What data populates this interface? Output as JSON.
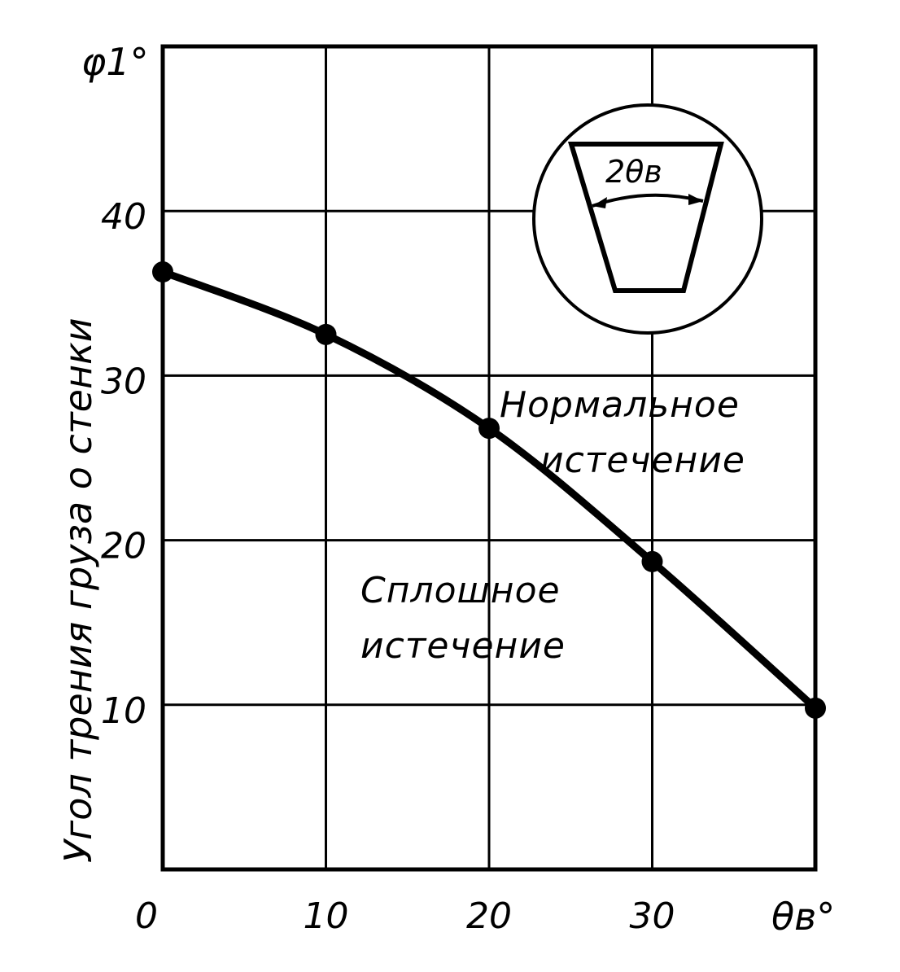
{
  "chart_data": {
    "type": "line",
    "title": "",
    "xlabel": "θв°",
    "ylabel": "Угол трения груза о стенки",
    "ylabel_symbol": "φ1°",
    "xlim": [
      0,
      40
    ],
    "ylim": [
      0,
      50
    ],
    "x_ticks": [
      "0",
      "10",
      "20",
      "30"
    ],
    "y_ticks": [
      "10",
      "20",
      "30",
      "40"
    ],
    "grid": true,
    "series": [
      {
        "x": [
          0,
          10,
          20,
          30,
          40
        ],
        "y": [
          36.3,
          32.5,
          26.8,
          18.7,
          9.8
        ]
      }
    ],
    "annotations": {
      "upper_region": [
        "Нормальное",
        "истечение"
      ],
      "lower_region": [
        "Сплошное",
        "истечение"
      ],
      "inset_label": "2θв"
    },
    "line_color": "#000000"
  }
}
